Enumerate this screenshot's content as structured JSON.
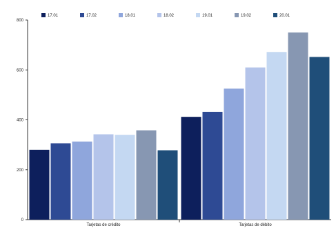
{
  "chart_data": {
    "type": "bar",
    "title": "",
    "xlabel": "",
    "ylabel": "",
    "categories": [
      "Tarjetas de crédito",
      "Tarjetas de débito"
    ],
    "series": [
      {
        "name": "17.01",
        "color": "#0d1f5c",
        "values": [
          280,
          412
        ]
      },
      {
        "name": "17.02",
        "color": "#2e4a94",
        "values": [
          306,
          432
        ]
      },
      {
        "name": "18.01",
        "color": "#8fa6dc",
        "values": [
          313,
          525
        ]
      },
      {
        "name": "18.02",
        "color": "#b4c4ea",
        "values": [
          342,
          610
        ]
      },
      {
        "name": "19.01",
        "color": "#c4d8f2",
        "values": [
          340,
          672
        ]
      },
      {
        "name": "19.02",
        "color": "#8797b2",
        "values": [
          358,
          750
        ]
      },
      {
        "name": "20.01",
        "color": "#1f4e79",
        "values": [
          278,
          652
        ]
      }
    ],
    "ylim": [
      0,
      800
    ],
    "yticks": [
      0,
      200,
      400,
      600,
      800
    ],
    "legend_position": "top",
    "grid": false
  }
}
